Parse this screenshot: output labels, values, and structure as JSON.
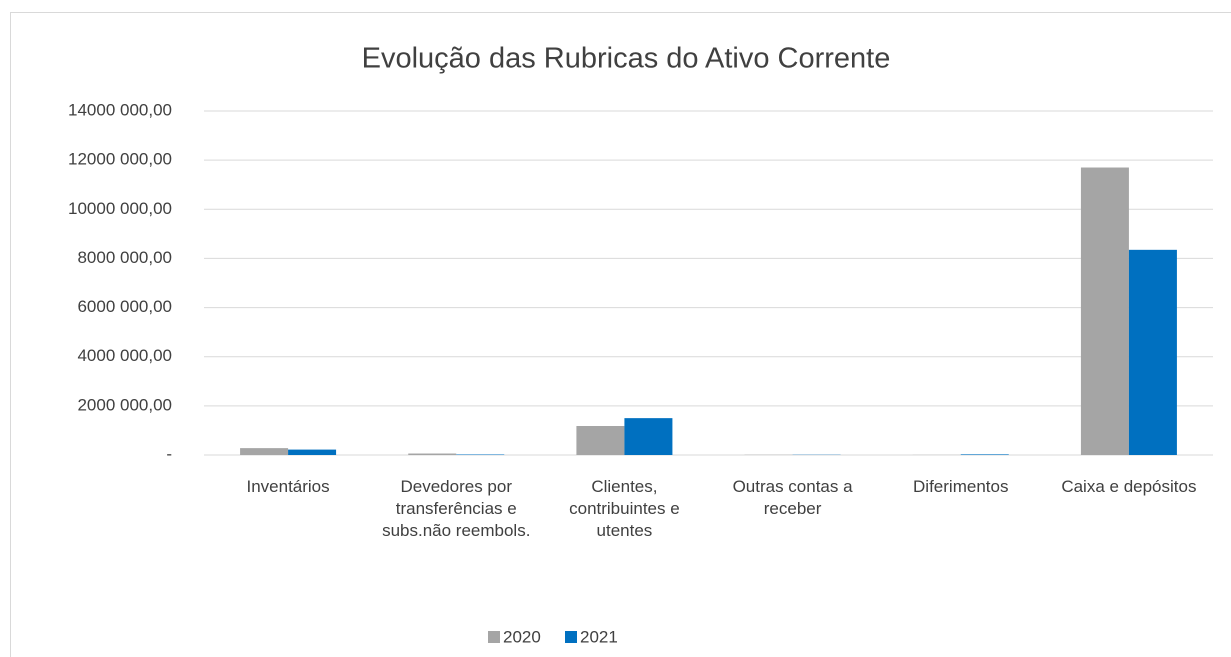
{
  "chart_data": {
    "type": "bar",
    "title": "Evolução das Rubricas do Ativo Corrente",
    "categories": [
      "Inventários",
      "Devedores por transferências e subs.não reembols.",
      "Clientes, contribuintes e utentes",
      "Outras contas a receber",
      "Diferimentos",
      "Caixa e depósitos"
    ],
    "series": [
      {
        "name": "2020",
        "color": "#a5a5a5",
        "values": [
          280000,
          60000,
          1180000,
          10000,
          5000,
          11700000
        ]
      },
      {
        "name": "2021",
        "color": "#0070c0",
        "values": [
          220000,
          20000,
          1500000,
          10000,
          25000,
          8350000
        ]
      }
    ],
    "ylim": [
      0,
      14000000
    ],
    "yticks": [
      {
        "value": 0,
        "label": "-"
      },
      {
        "value": 2000000,
        "label": "2000 000,00"
      },
      {
        "value": 4000000,
        "label": "4000 000,00"
      },
      {
        "value": 6000000,
        "label": "6000 000,00"
      },
      {
        "value": 8000000,
        "label": "8000 000,00"
      },
      {
        "value": 10000000,
        "label": "10000 000,00"
      },
      {
        "value": 12000000,
        "label": "12000 000,00"
      },
      {
        "value": 14000000,
        "label": "14000 000,00"
      }
    ],
    "grid": true,
    "legend": "bottom"
  }
}
